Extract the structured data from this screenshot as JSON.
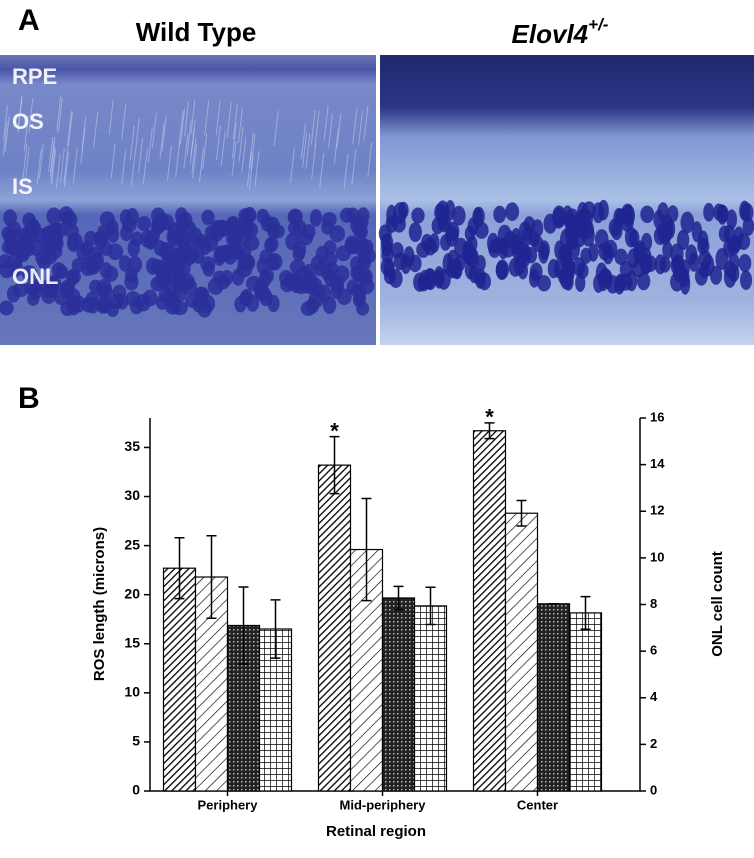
{
  "panel_a": {
    "label": "A",
    "title_left": "Wild Type",
    "title_right": {
      "text": "Elovl4",
      "superscript": "+/-"
    },
    "layers": [
      "RPE",
      "OS",
      "IS",
      "ONL"
    ]
  },
  "chart_data": {
    "type": "bar",
    "panel_label": "B",
    "xlabel": "Retinal region",
    "ylabel": "ROS length (microns)",
    "y2label": "ONL cell count",
    "categories": [
      "Periphery",
      "Mid-periphery",
      "Center"
    ],
    "ylim": [
      0,
      38
    ],
    "yticks": [
      0,
      5,
      10,
      15,
      20,
      25,
      30,
      35
    ],
    "y2lim": [
      0,
      16
    ],
    "y2ticks": [
      0,
      2,
      4,
      6,
      8,
      10,
      12,
      14,
      16
    ],
    "series": [
      {
        "color": "#000000",
        "pattern": "dense-diagonal",
        "values": [
          22.7,
          33.2,
          36.7
        ],
        "errors": [
          3.1,
          2.9,
          0.8
        ]
      },
      {
        "color": "#000000",
        "pattern": "sparse-diagonal",
        "values": [
          21.8,
          24.6,
          28.3
        ],
        "errors": [
          4.2,
          5.2,
          1.3
        ]
      },
      {
        "color": "#000000",
        "pattern": "crosshatch",
        "axis": "y2",
        "values": [
          7.1,
          8.28,
          8.03
        ],
        "errors": [
          1.65,
          0.5,
          0
        ]
      },
      {
        "color": "#000000",
        "pattern": "grid",
        "axis": "y2",
        "values": [
          6.95,
          7.94,
          7.64
        ],
        "errors": [
          1.25,
          0.8,
          0.7
        ]
      }
    ],
    "annotations": [
      {
        "text": "*",
        "series": 0,
        "category": 1
      },
      {
        "text": "*",
        "series": 0,
        "category": 2
      }
    ]
  }
}
